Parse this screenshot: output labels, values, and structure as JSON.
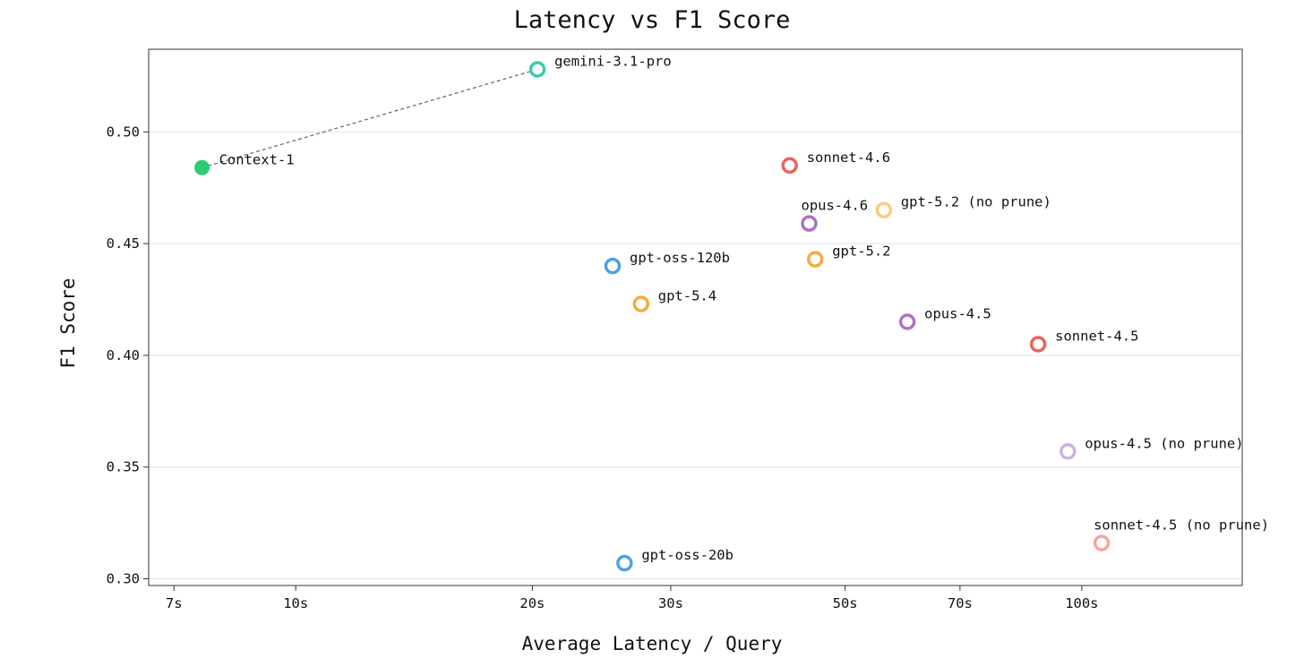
{
  "chart_data": {
    "type": "scatter",
    "title": "Latency vs F1 Score",
    "xlabel": "Average Latency / Query",
    "ylabel": "F1 Score",
    "x_scale": "log",
    "x_unit": "s",
    "xlim": [
      6.5,
      160
    ],
    "ylim": [
      0.297,
      0.537
    ],
    "x_ticks": [
      {
        "value": 7,
        "label": "7s"
      },
      {
        "value": 10,
        "label": "10s"
      },
      {
        "value": 20,
        "label": "20s"
      },
      {
        "value": 30,
        "label": "30s"
      },
      {
        "value": 50,
        "label": "50s"
      },
      {
        "value": 70,
        "label": "70s"
      },
      {
        "value": 100,
        "label": "100s"
      }
    ],
    "y_ticks": [
      {
        "value": 0.3,
        "label": "0.30"
      },
      {
        "value": 0.35,
        "label": "0.35"
      },
      {
        "value": 0.4,
        "label": "0.40"
      },
      {
        "value": 0.45,
        "label": "0.45"
      },
      {
        "value": 0.5,
        "label": "0.50"
      }
    ],
    "grid": "horizontal",
    "points": [
      {
        "label": "Context-1",
        "x": 7.6,
        "y": 0.484,
        "color": "#2ecc71",
        "filled": true,
        "label_pos": "right"
      },
      {
        "label": "gemini-3.1-pro",
        "x": 20.3,
        "y": 0.528,
        "color": "#3fc9b0",
        "filled": false,
        "label_pos": "right"
      },
      {
        "label": "sonnet-4.6",
        "x": 42.5,
        "y": 0.485,
        "color": "#e8655a",
        "filled": false,
        "label_pos": "right"
      },
      {
        "label": "gpt-5.2 (no prune)",
        "x": 56.0,
        "y": 0.465,
        "color": "#f8cc80",
        "filled": false,
        "label_pos": "right"
      },
      {
        "label": "opus-4.6",
        "x": 45.0,
        "y": 0.459,
        "color": "#b070c8",
        "filled": false,
        "label_pos": "above"
      },
      {
        "label": "gpt-5.2",
        "x": 45.8,
        "y": 0.443,
        "color": "#f5ab3c",
        "filled": false,
        "label_pos": "right"
      },
      {
        "label": "gpt-oss-120b",
        "x": 25.3,
        "y": 0.44,
        "color": "#4ea3df",
        "filled": false,
        "label_pos": "right"
      },
      {
        "label": "gpt-5.4",
        "x": 27.5,
        "y": 0.423,
        "color": "#f5ab3c",
        "filled": false,
        "label_pos": "right"
      },
      {
        "label": "opus-4.5",
        "x": 60.0,
        "y": 0.415,
        "color": "#b070c8",
        "filled": false,
        "label_pos": "right"
      },
      {
        "label": "sonnet-4.5",
        "x": 88.0,
        "y": 0.405,
        "color": "#e8655a",
        "filled": false,
        "label_pos": "right"
      },
      {
        "label": "opus-4.5 (no prune)",
        "x": 96.0,
        "y": 0.357,
        "color": "#d1aee8",
        "filled": false,
        "label_pos": "right"
      },
      {
        "label": "sonnet-4.5 (no prune)",
        "x": 106.0,
        "y": 0.316,
        "color": "#f4a6a0",
        "filled": false,
        "label_pos": "above"
      },
      {
        "label": "gpt-oss-20b",
        "x": 26.2,
        "y": 0.307,
        "color": "#4ea3df",
        "filled": false,
        "label_pos": "right"
      }
    ],
    "connector": {
      "from": "Context-1",
      "to": "gemini-3.1-pro",
      "style": "dashed",
      "color": "#666666"
    }
  }
}
